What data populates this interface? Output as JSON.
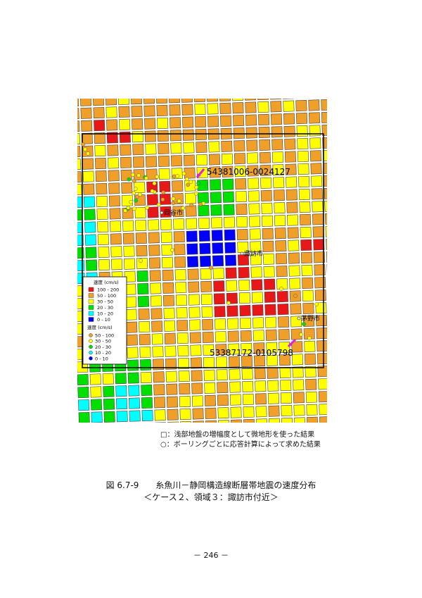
{
  "figure": {
    "legend_grid": {
      "title": "速度 (cm/s)",
      "items": [
        {
          "label": "100 - 200",
          "color": "#e81818"
        },
        {
          "label": "50 - 100",
          "color": "#f0a028"
        },
        {
          "label": "30 - 50",
          "color": "#ffff00"
        },
        {
          "label": "20 - 30",
          "color": "#00e000"
        },
        {
          "label": "10 - 20",
          "color": "#00ffff"
        },
        {
          "label": "0 - 10",
          "color": "#0000ff"
        }
      ]
    },
    "legend_points": {
      "title": "速度 (cm/s)",
      "items": [
        {
          "label": "50 - 100",
          "color": "#f0a028"
        },
        {
          "label": "30 - 50",
          "color": "#ffff00"
        },
        {
          "label": "20 - 30",
          "color": "#00e000"
        },
        {
          "label": "10 - 20",
          "color": "#00ffff"
        },
        {
          "label": "0 - 10",
          "color": "#0000ff"
        }
      ]
    },
    "mesh_codes": [
      "54381006-0024127",
      "53387172-0105798"
    ],
    "cities": [
      "岡谷市",
      "諏訪市",
      "茅野市"
    ]
  },
  "notes": [
    "□：浅部地盤の増幅度として微地形を使った結果",
    "○：ボーリングごとに応答計算によって求めた結果"
  ],
  "caption": {
    "title": "図 6.7-9　　糸魚川－静岡構造線断層帯地震の速度分布",
    "subtitle": "＜ケース２、領域３：諏訪市付近＞"
  },
  "page_number": "－ 246 －"
}
